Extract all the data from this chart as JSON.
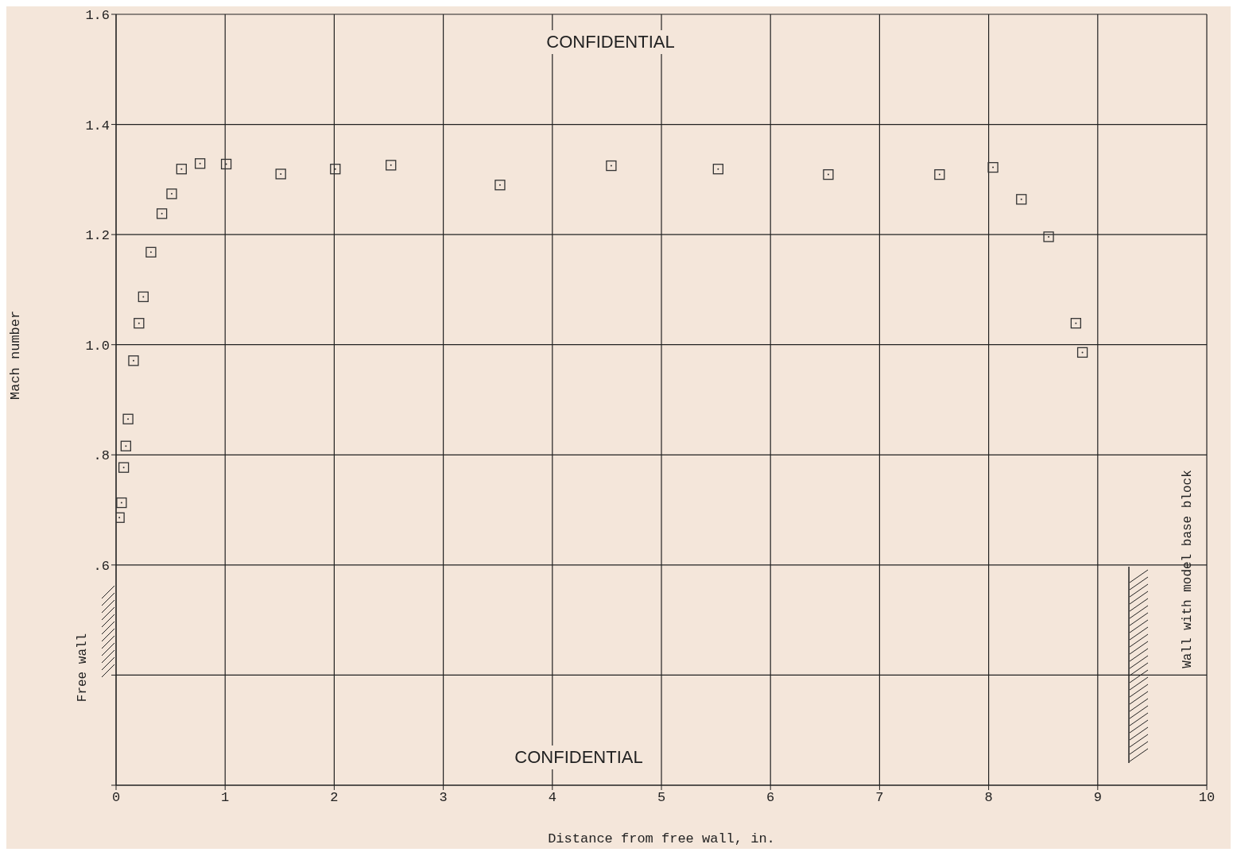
{
  "chart_data": {
    "type": "scatter",
    "xlabel": "Distance from free wall, in.",
    "ylabel": "Mach number",
    "x": [
      0.03,
      0.05,
      0.07,
      0.09,
      0.11,
      0.16,
      0.21,
      0.25,
      0.32,
      0.42,
      0.51,
      0.6,
      0.77,
      1.01,
      1.51,
      2.01,
      2.52,
      3.52,
      4.54,
      5.52,
      6.53,
      7.55,
      8.04,
      8.3,
      8.55,
      8.8,
      8.86
    ],
    "series": [
      {
        "color": "#333333",
        "values": [
          0.686,
          0.713,
          0.777,
          0.816,
          0.865,
          0.971,
          1.039,
          1.087,
          1.168,
          1.238,
          1.274,
          1.319,
          1.329,
          1.328,
          1.31,
          1.319,
          1.326,
          1.29,
          1.325,
          1.319,
          1.309,
          1.309,
          1.322,
          1.264,
          1.196,
          1.039,
          0.986
        ]
      }
    ],
    "xlim": [
      0,
      10
    ],
    "xticks": [
      0,
      1,
      2,
      3,
      4,
      5,
      6,
      7,
      8,
      9,
      10
    ],
    "ylim": [
      0.2,
      1.6
    ],
    "yticks": [
      {
        "value": 0.2,
        "label": null
      },
      {
        "value": 0.4,
        "label": null
      },
      {
        "value": 0.6,
        "label": ".6"
      },
      {
        "value": 0.8,
        "label": ".8"
      },
      {
        "value": 1.0,
        "label": "1.0"
      },
      {
        "value": 1.2,
        "label": "1.2"
      },
      {
        "value": 1.4,
        "label": "1.4"
      },
      {
        "value": 1.6,
        "label": "1.6"
      }
    ],
    "grid": true,
    "legend": false,
    "marker": "square",
    "annotations": [
      "CONFIDENTIAL",
      "CONFIDENTIAL",
      "Free wall",
      "Wall with model base block"
    ]
  }
}
